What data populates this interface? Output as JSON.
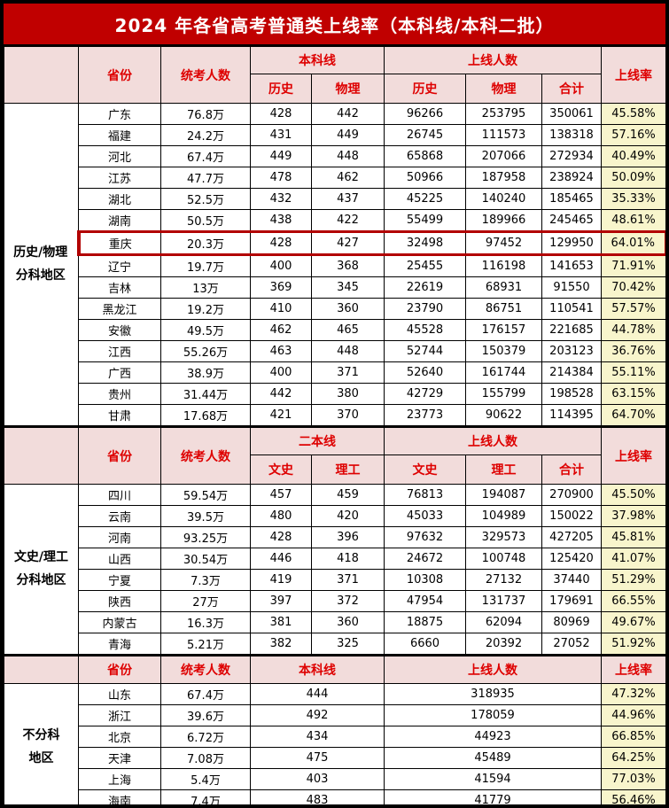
{
  "title": "2024 年各省高考普通类上线率（本科线/本科二批）",
  "colors": {
    "title_bg": "#C00000",
    "title_text": "#FFFFFF",
    "header_bg": "#F2DCDB",
    "header_text": "#DE0000",
    "rate_column_bg": "#F8F5CC",
    "highlight_border": "#B20000",
    "grid_border": "#000000"
  },
  "chart_data": {
    "type": "table",
    "title": "2024 年各省高考普通类上线率（本科线/本科二批）",
    "sections": [
      {
        "region": "历史/物理分科地区",
        "region_lines": [
          "历史/物理",
          "分科地区"
        ],
        "header": {
          "province": "省份",
          "examinees": "统考人数",
          "line_group": "本科线",
          "line_sub": [
            "历史",
            "物理"
          ],
          "above_group": "上线人数",
          "above_sub": [
            "历史",
            "物理",
            "合计"
          ],
          "rate": "上线率"
        },
        "merged": false,
        "highlight_row": 6,
        "rows": [
          [
            "广东",
            "76.8万",
            "428",
            "442",
            "96266",
            "253795",
            "350061",
            "45.58%"
          ],
          [
            "福建",
            "24.2万",
            "431",
            "449",
            "26745",
            "111573",
            "138318",
            "57.16%"
          ],
          [
            "河北",
            "67.4万",
            "449",
            "448",
            "65868",
            "207066",
            "272934",
            "40.49%"
          ],
          [
            "江苏",
            "47.7万",
            "478",
            "462",
            "50966",
            "187958",
            "238924",
            "50.09%"
          ],
          [
            "湖北",
            "52.5万",
            "432",
            "437",
            "45225",
            "140240",
            "185465",
            "35.33%"
          ],
          [
            "湖南",
            "50.5万",
            "438",
            "422",
            "55499",
            "189966",
            "245465",
            "48.61%"
          ],
          [
            "重庆",
            "20.3万",
            "428",
            "427",
            "32498",
            "97452",
            "129950",
            "64.01%"
          ],
          [
            "辽宁",
            "19.7万",
            "400",
            "368",
            "25455",
            "116198",
            "141653",
            "71.91%"
          ],
          [
            "吉林",
            "13万",
            "369",
            "345",
            "22619",
            "68931",
            "91550",
            "70.42%"
          ],
          [
            "黑龙江",
            "19.2万",
            "410",
            "360",
            "23790",
            "86751",
            "110541",
            "57.57%"
          ],
          [
            "安徽",
            "49.5万",
            "462",
            "465",
            "45528",
            "176157",
            "221685",
            "44.78%"
          ],
          [
            "江西",
            "55.26万",
            "463",
            "448",
            "52744",
            "150379",
            "203123",
            "36.76%"
          ],
          [
            "广西",
            "38.9万",
            "400",
            "371",
            "52640",
            "161744",
            "214384",
            "55.11%"
          ],
          [
            "贵州",
            "31.44万",
            "442",
            "380",
            "42729",
            "155799",
            "198528",
            "63.15%"
          ],
          [
            "甘肃",
            "17.68万",
            "421",
            "370",
            "23773",
            "90622",
            "114395",
            "64.70%"
          ]
        ]
      },
      {
        "region": "文史/理工分科地区",
        "region_lines": [
          "文史/理工",
          "分科地区"
        ],
        "header": {
          "province": "省份",
          "examinees": "统考人数",
          "line_group": "二本线",
          "line_sub": [
            "文史",
            "理工"
          ],
          "above_group": "上线人数",
          "above_sub": [
            "文史",
            "理工",
            "合计"
          ],
          "rate": "上线率"
        },
        "merged": false,
        "highlight_row": null,
        "rows": [
          [
            "四川",
            "59.54万",
            "457",
            "459",
            "76813",
            "194087",
            "270900",
            "45.50%"
          ],
          [
            "云南",
            "39.5万",
            "480",
            "420",
            "45033",
            "104989",
            "150022",
            "37.98%"
          ],
          [
            "河南",
            "93.25万",
            "428",
            "396",
            "97632",
            "329573",
            "427205",
            "45.81%"
          ],
          [
            "山西",
            "30.54万",
            "446",
            "418",
            "24672",
            "100748",
            "125420",
            "41.07%"
          ],
          [
            "宁夏",
            "7.3万",
            "419",
            "371",
            "10308",
            "27132",
            "37440",
            "51.29%"
          ],
          [
            "陕西",
            "27万",
            "397",
            "372",
            "47954",
            "131737",
            "179691",
            "66.55%"
          ],
          [
            "内蒙古",
            "16.3万",
            "381",
            "360",
            "18875",
            "62094",
            "80969",
            "49.67%"
          ],
          [
            "青海",
            "5.21万",
            "382",
            "325",
            "6660",
            "20392",
            "27052",
            "51.92%"
          ]
        ]
      },
      {
        "region": "不分科地区",
        "region_lines": [
          "不分科",
          "地区"
        ],
        "header": {
          "province": "省份",
          "examinees": "统考人数",
          "line_group": "本科线",
          "above_group": "上线人数",
          "rate": "上线率"
        },
        "merged": true,
        "highlight_row": null,
        "rows": [
          [
            "山东",
            "67.4万",
            "444",
            "318935",
            "47.32%"
          ],
          [
            "浙江",
            "39.6万",
            "492",
            "178059",
            "44.96%"
          ],
          [
            "北京",
            "6.72万",
            "434",
            "44923",
            "66.85%"
          ],
          [
            "天津",
            "7.08万",
            "475",
            "45489",
            "64.25%"
          ],
          [
            "上海",
            "5.4万",
            "403",
            "41594",
            "77.03%"
          ],
          [
            "海南",
            "7.4万",
            "483",
            "41779",
            "56.46%"
          ]
        ]
      }
    ]
  }
}
